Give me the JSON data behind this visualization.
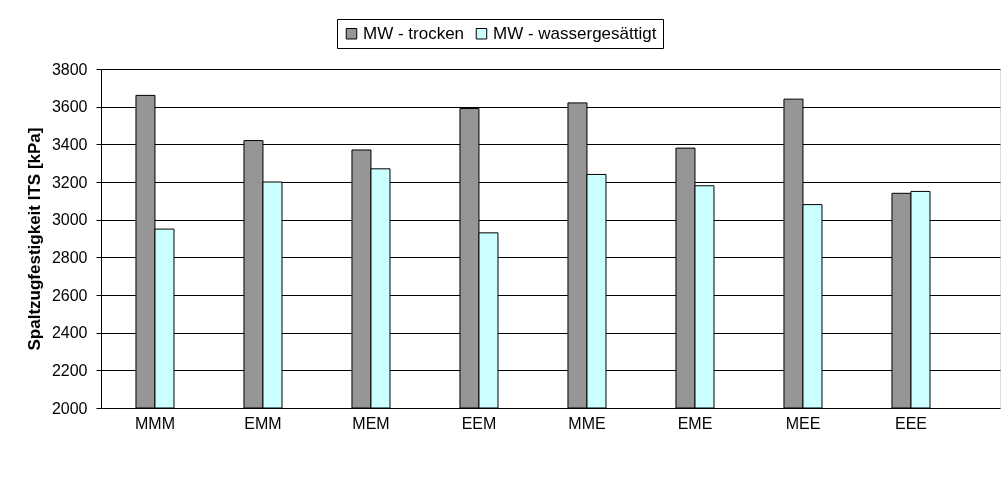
{
  "chart_data": {
    "type": "bar",
    "ylabel": "Spaltzugfestigkeit ITS [kPa]",
    "categories": [
      "MMM",
      "EMM",
      "MEM",
      "EEM",
      "MME",
      "EME",
      "MEE",
      "EEE"
    ],
    "series": [
      {
        "name": "MW - trocken",
        "color": "#969696",
        "values": [
          3660,
          3420,
          3370,
          3590,
          3620,
          3380,
          3640,
          3140
        ]
      },
      {
        "name": "MW - wassergesättigt",
        "color": "#ccffff",
        "values": [
          2950,
          3200,
          3270,
          2930,
          3240,
          3180,
          3080,
          3150
        ]
      }
    ],
    "ylim": [
      2000,
      3800
    ],
    "yticks": [
      2000,
      2200,
      2400,
      2600,
      2800,
      3000,
      3200,
      3400,
      3600,
      3800
    ],
    "grid": "y",
    "legend": "top"
  }
}
